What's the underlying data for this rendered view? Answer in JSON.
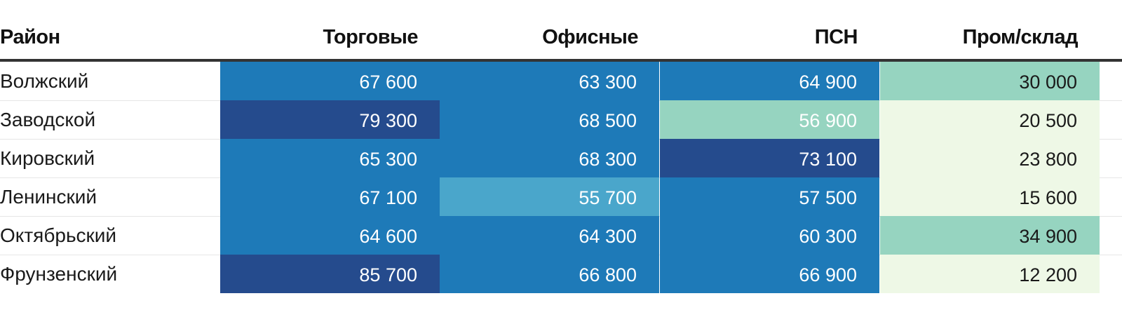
{
  "chart_data": {
    "type": "table",
    "columns": [
      "Район",
      "Торговые",
      "Офисные",
      "ПСН",
      "Пром/склад"
    ],
    "rows": [
      {
        "district": "Волжский",
        "values": [
          67600,
          63300,
          64900,
          30000
        ],
        "labels": [
          "67 600",
          "63 300",
          "64 900",
          "30 000"
        ]
      },
      {
        "district": "Заводской",
        "values": [
          79300,
          68500,
          56900,
          20500
        ],
        "labels": [
          "79 300",
          "68 500",
          "56 900",
          "20 500"
        ]
      },
      {
        "district": "Кировский",
        "values": [
          65300,
          68300,
          73100,
          23800
        ],
        "labels": [
          "65 300",
          "68 300",
          "73 100",
          "23 800"
        ]
      },
      {
        "district": "Ленинский",
        "values": [
          67100,
          55700,
          57500,
          15600
        ],
        "labels": [
          "67 100",
          "55 700",
          "57 500",
          "15 600"
        ]
      },
      {
        "district": "Октябрьский",
        "values": [
          64600,
          64300,
          60300,
          34900
        ],
        "labels": [
          "64 600",
          "64 300",
          "60 300",
          "34 900"
        ]
      },
      {
        "district": "Фрунзенский",
        "values": [
          85700,
          66800,
          66900,
          12200
        ],
        "labels": [
          "85 700",
          "66 800",
          "66 900",
          "12 200"
        ]
      }
    ],
    "color_scale": {
      "thresholds": [
        25000,
        57000,
        69000
      ],
      "colors": [
        "#eef8e6",
        "#96d4c0",
        "#4aa6cb",
        "#1e7ab8",
        "#254b8d"
      ],
      "dark_text_below": 57000
    }
  }
}
